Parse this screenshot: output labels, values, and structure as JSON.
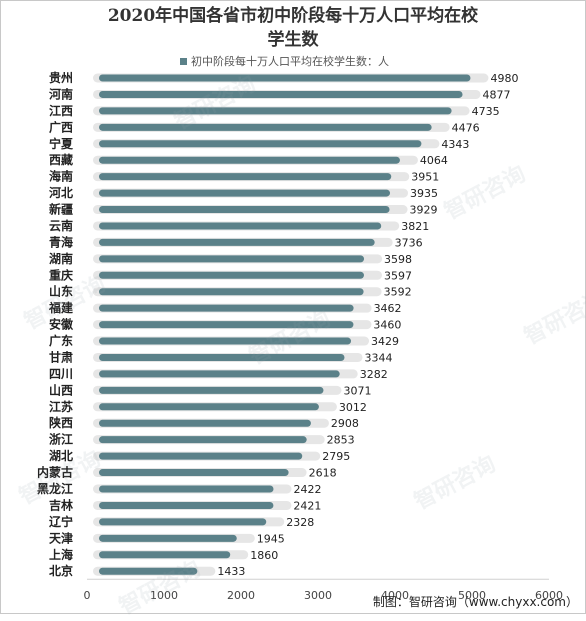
{
  "chart_data": {
    "type": "bar",
    "orientation": "horizontal",
    "title_line1": "2020年中国各省市初中阶段每十万人口平均在校",
    "title_line2": "学生数",
    "legend": "初中阶段每十万人口平均在校学生数：人",
    "categories": [
      "贵州",
      "河南",
      "江西",
      "广西",
      "宁夏",
      "西藏",
      "海南",
      "河北",
      "新疆",
      "云南",
      "青海",
      "湖南",
      "重庆",
      "山东",
      "福建",
      "安徽",
      "广东",
      "甘肃",
      "四川",
      "山西",
      "江苏",
      "陕西",
      "浙江",
      "湖北",
      "内蒙古",
      "黑龙江",
      "吉林",
      "辽宁",
      "天津",
      "上海",
      "北京"
    ],
    "values": [
      4980,
      4877,
      4735,
      4476,
      4343,
      4064,
      3951,
      3935,
      3929,
      3821,
      3736,
      3598,
      3597,
      3592,
      3462,
      3460,
      3429,
      3344,
      3282,
      3071,
      3012,
      2908,
      2853,
      2795,
      2618,
      2422,
      2421,
      2328,
      1945,
      1860,
      1433
    ],
    "xlim": [
      0,
      6000
    ],
    "xticks": [
      "0",
      "1000",
      "2000",
      "3000",
      "4000",
      "5000",
      "6000"
    ],
    "bar_color": "#5b8189",
    "bar_highlight_color": "#e6e6e6"
  },
  "source": "制图：智研咨询（www.chyxx.com）",
  "watermark": "智研咨询"
}
